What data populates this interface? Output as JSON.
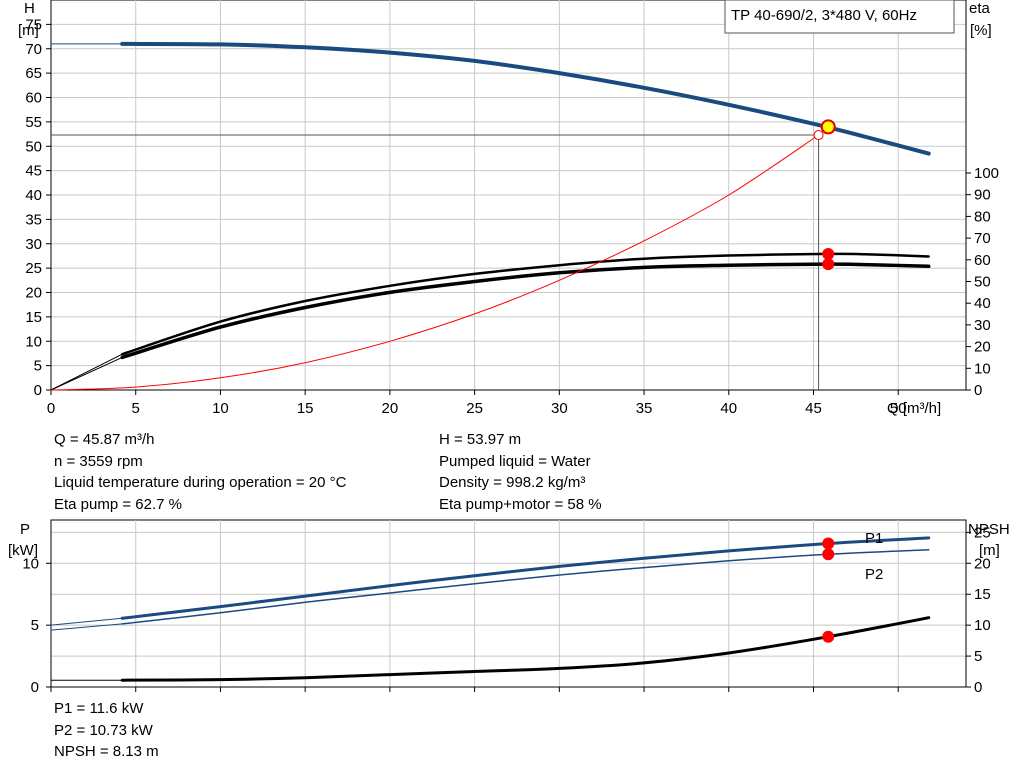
{
  "chart_data": [
    {
      "type": "line",
      "title": "TP 40-690/2, 3*480 V, 60Hz",
      "xlabel": "Q [m³/h]",
      "ylabel_left": [
        "H",
        "[m]"
      ],
      "ylabel_right": [
        "eta",
        "[%]"
      ],
      "xlim": [
        0,
        54
      ],
      "ylim_left": [
        0,
        80
      ],
      "ylim_right": [
        0,
        100
      ],
      "x_ticks": [
        0,
        5,
        10,
        15,
        20,
        25,
        30,
        35,
        40,
        45,
        50
      ],
      "y_ticks_left": [
        0,
        5,
        10,
        15,
        20,
        25,
        30,
        35,
        40,
        45,
        50,
        55,
        60,
        65,
        70,
        75
      ],
      "y_ticks_right": [
        0,
        10,
        20,
        30,
        40,
        50,
        60,
        70,
        80,
        90,
        100
      ],
      "grid": true,
      "duty_point": {
        "x": 45.87,
        "H": 53.97
      },
      "system_curve_point": {
        "x": 45.3,
        "H": 52.3
      },
      "series": [
        {
          "axis": "left",
          "color": "#1a4a80",
          "width": 4,
          "x": [
            4.2,
            10,
            15,
            20,
            25,
            30,
            35,
            40,
            45,
            48,
            51.8
          ],
          "y": [
            71.0,
            70.9,
            70.3,
            69.2,
            67.5,
            65.0,
            62.0,
            58.5,
            54.6,
            52.0,
            48.5
          ]
        },
        {
          "axis": "left",
          "color": "#1a4a80",
          "width": 1,
          "x": [
            0,
            4.2
          ],
          "y": [
            71.0,
            71.0
          ]
        },
        {
          "axis": "right",
          "color": "#000000",
          "width": 2.5,
          "x": [
            4.2,
            10,
            15,
            20,
            25,
            30,
            35,
            40,
            45.87,
            48,
            51.8
          ],
          "y": [
            16.5,
            31.5,
            41.0,
            48.0,
            53.5,
            57.5,
            60.5,
            62.0,
            62.7,
            62.6,
            61.5
          ]
        },
        {
          "axis": "right",
          "color": "#000000",
          "width": 3.5,
          "x": [
            4.2,
            10,
            15,
            20,
            25,
            30,
            35,
            40,
            45.87,
            48,
            51.8
          ],
          "y": [
            15.0,
            29.0,
            38.0,
            45.0,
            50.0,
            54.0,
            56.5,
            57.5,
            58.0,
            57.8,
            57.0
          ]
        },
        {
          "axis": "right",
          "color": "#000000",
          "width": 1,
          "x": [
            0,
            4.2
          ],
          "y": [
            0,
            16.5
          ]
        },
        {
          "axis": "right",
          "color": "#000000",
          "width": 1,
          "x": [
            0,
            4.2
          ],
          "y": [
            0,
            15.0
          ]
        },
        {
          "axis": "left",
          "color": "#ff0000",
          "width": 1,
          "x": [
            0,
            5,
            10,
            15,
            20,
            25,
            30,
            35,
            40,
            45.3
          ],
          "y": [
            0,
            0.6,
            2.5,
            5.6,
            10.0,
            15.6,
            22.5,
            30.6,
            40.0,
            52.3
          ]
        }
      ],
      "markers": [
        {
          "axis": "right",
          "x": 45.87,
          "y": 62.7
        },
        {
          "axis": "right",
          "x": 45.87,
          "y": 58.0
        }
      ]
    },
    {
      "type": "line",
      "ylabel_left": [
        "P",
        "[kW]"
      ],
      "ylabel_right": [
        "NPSH",
        "[m]"
      ],
      "xlim": [
        0,
        54
      ],
      "ylim_left": [
        0,
        13.5
      ],
      "ylim_right": [
        0,
        27
      ],
      "y_ticks_left": [
        0,
        5,
        10
      ],
      "y_ticks_right": [
        0,
        5,
        10,
        15,
        20,
        25
      ],
      "grid": true,
      "series": [
        {
          "name": "P1",
          "axis": "left",
          "color": "#1a4a80",
          "width": 3,
          "x": [
            4.2,
            10,
            15,
            20,
            25,
            30,
            35,
            40,
            45.87,
            51.8
          ],
          "y": [
            5.55,
            6.5,
            7.35,
            8.2,
            9.0,
            9.75,
            10.4,
            11.0,
            11.6,
            12.05
          ]
        },
        {
          "name": "P2",
          "axis": "left",
          "color": "#1a4a80",
          "width": 1.5,
          "x": [
            4.2,
            10,
            15,
            20,
            25,
            30,
            35,
            40,
            45.87,
            51.8
          ],
          "y": [
            5.1,
            6.0,
            6.85,
            7.6,
            8.35,
            9.05,
            9.65,
            10.2,
            10.73,
            11.1
          ]
        },
        {
          "axis": "left",
          "color": "#1a4a80",
          "width": 1,
          "x": [
            0,
            4.2
          ],
          "y": [
            5.0,
            5.55
          ]
        },
        {
          "axis": "left",
          "color": "#1a4a80",
          "width": 1,
          "x": [
            0,
            4.2
          ],
          "y": [
            4.6,
            5.1
          ]
        },
        {
          "axis": "right",
          "color": "#000000",
          "width": 3,
          "x": [
            4.2,
            10,
            15,
            20,
            25,
            30,
            35,
            40,
            45.87,
            51.8
          ],
          "y": [
            1.1,
            1.2,
            1.5,
            2.0,
            2.5,
            3.0,
            3.9,
            5.5,
            8.13,
            11.2
          ]
        },
        {
          "axis": "right",
          "color": "#000000",
          "width": 1,
          "x": [
            0,
            4.2
          ],
          "y": [
            1.1,
            1.1
          ]
        }
      ],
      "markers": [
        {
          "axis": "left",
          "x": 45.87,
          "y": 11.6
        },
        {
          "axis": "left",
          "x": 45.87,
          "y": 10.73
        },
        {
          "axis": "right",
          "x": 45.87,
          "y": 8.13
        }
      ]
    }
  ],
  "info1": {
    "left": [
      "Q = 45.87 m³/h",
      "n = 3559 rpm",
      "Liquid temperature during operation = 20 °C",
      "Eta pump = 62.7 %"
    ],
    "right": [
      "H = 53.97 m",
      "Pumped liquid = Water",
      "Density = 998.2 kg/m³",
      "Eta pump+motor = 58 %"
    ]
  },
  "info2": [
    "P1 = 11.6 kW",
    "P2 = 10.73 kW",
    "NPSH = 8.13 m"
  ]
}
